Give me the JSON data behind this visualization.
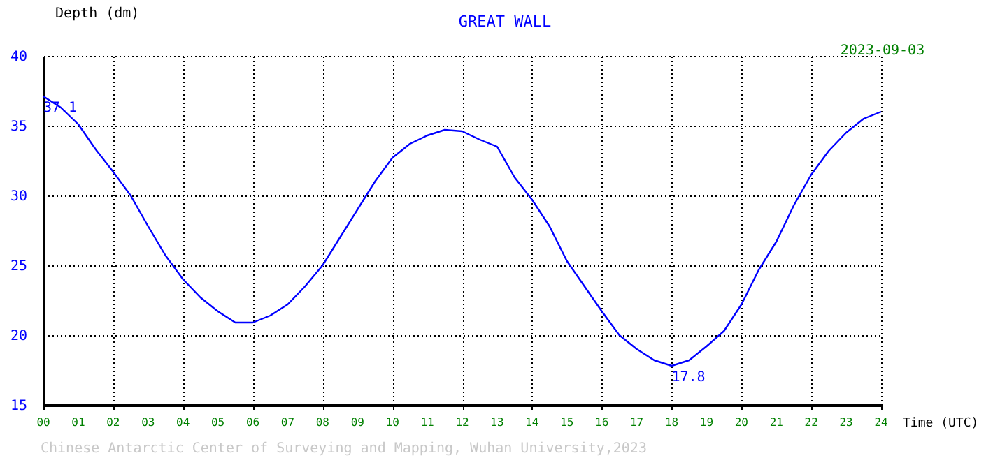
{
  "chart_data": {
    "type": "line",
    "title": "GREAT WALL",
    "xlabel": "Time (UTC)",
    "ylabel": "Depth (dm)",
    "x": [
      0,
      0.5,
      1,
      1.5,
      2,
      2.5,
      3,
      3.5,
      4,
      4.5,
      5,
      5.5,
      6,
      6.5,
      7,
      7.5,
      8,
      8.5,
      9,
      9.5,
      10,
      10.5,
      11,
      11.5,
      12,
      12.5,
      13,
      13.5,
      14,
      14.5,
      15,
      15.5,
      16,
      16.5,
      17,
      17.5,
      18,
      18.5,
      19,
      19.5,
      20,
      20.5,
      21,
      21.5,
      22,
      22.5,
      23,
      23.5,
      24
    ],
    "series": [
      {
        "color": "#0000ff",
        "values": [
          37.1,
          36.3,
          35.1,
          33.3,
          31.7,
          30.0,
          27.8,
          25.7,
          24.0,
          22.7,
          21.7,
          20.9,
          20.9,
          21.4,
          22.2,
          23.5,
          25.0,
          27.0,
          29.0,
          31.0,
          32.7,
          33.7,
          34.3,
          34.7,
          34.6,
          34.0,
          33.5,
          31.3,
          29.7,
          27.8,
          25.3,
          23.5,
          21.7,
          20.0,
          19.0,
          18.2,
          17.8,
          18.2,
          19.2,
          20.3,
          22.2,
          24.7,
          26.7,
          29.3,
          31.5,
          33.2,
          34.5,
          35.5,
          36.0
        ]
      }
    ],
    "xlim": [
      0,
      24
    ],
    "xticks": [
      {
        "value": 0,
        "label": "00"
      },
      {
        "value": 1,
        "label": "01"
      },
      {
        "value": 2,
        "label": "02"
      },
      {
        "value": 3,
        "label": "03"
      },
      {
        "value": 4,
        "label": "04"
      },
      {
        "value": 5,
        "label": "05"
      },
      {
        "value": 6,
        "label": "06"
      },
      {
        "value": 7,
        "label": "07"
      },
      {
        "value": 8,
        "label": "08"
      },
      {
        "value": 9,
        "label": "09"
      },
      10,
      11,
      12,
      13,
      14,
      15,
      16,
      17,
      18,
      19,
      20,
      21,
      22,
      23,
      24
    ],
    "ylim": [
      15,
      40
    ],
    "yticks": [
      15,
      20,
      25,
      30,
      35,
      40
    ],
    "grid": true,
    "marker": "none",
    "line_style": "solid",
    "annotations": [
      {
        "text": "37.1",
        "x": 0,
        "y": 37.1
      },
      {
        "text": "17.8",
        "x": 18,
        "y": 17.8
      },
      "2023-09-03",
      "Chinese Antarctic Center of Surveying and Mapping, Wuhan University,2023"
    ]
  }
}
